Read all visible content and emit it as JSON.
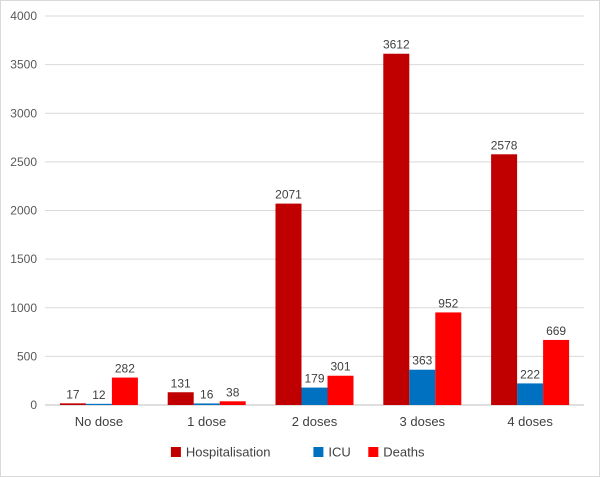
{
  "chart_data": {
    "type": "bar",
    "categories": [
      "No dose",
      "1 dose",
      "2 doses",
      "3 doses",
      "4 doses"
    ],
    "series": [
      {
        "name": "Hospitalisation",
        "color": "#c00000",
        "values": [
          17,
          131,
          2071,
          3612,
          2578
        ]
      },
      {
        "name": "ICU",
        "color": "#0070c0",
        "values": [
          12,
          16,
          179,
          363,
          222
        ]
      },
      {
        "name": "Deaths",
        "color": "#ff0000",
        "values": [
          282,
          38,
          301,
          952,
          669
        ]
      }
    ],
    "yticks": [
      0,
      500,
      1000,
      1500,
      2000,
      2500,
      3000,
      3500,
      4000
    ],
    "ylim": [
      0,
      4000
    ],
    "grid": true,
    "legend": "bottom",
    "data_labels": true
  }
}
